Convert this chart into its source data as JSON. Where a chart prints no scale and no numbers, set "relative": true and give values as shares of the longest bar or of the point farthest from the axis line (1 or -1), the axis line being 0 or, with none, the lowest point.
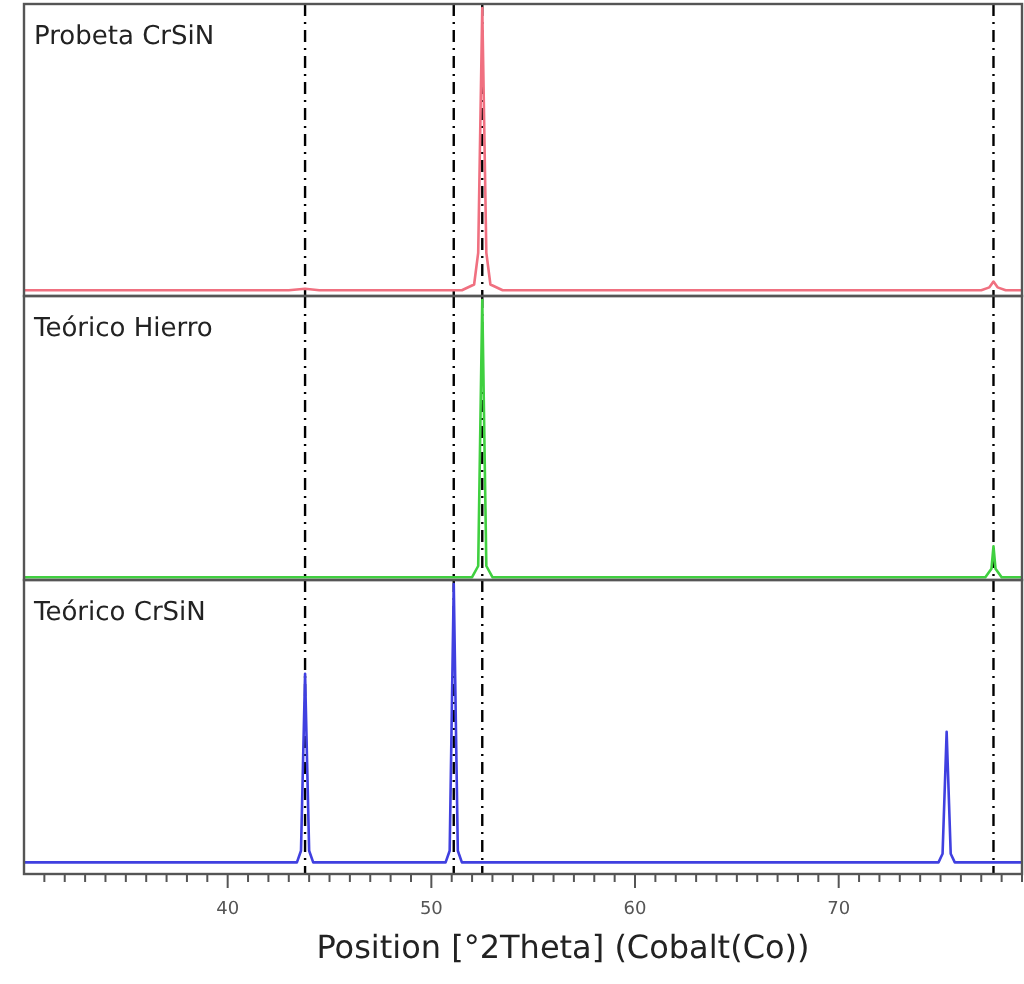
{
  "chart_data": [
    {
      "type": "line",
      "title": "Probeta CrSiN",
      "relative": true,
      "xlim": [
        30,
        79
      ],
      "tick_labels": false,
      "line_style": "solid",
      "marker": "none",
      "series": [
        {
          "color": "#f07080",
          "x": [
            30,
            43,
            43.8,
            44.5,
            51.5,
            52.1,
            52.3,
            52.5,
            52.7,
            52.9,
            53.5,
            77,
            77.4,
            77.6,
            77.8,
            78.2,
            79
          ],
          "values": [
            0.02,
            0.02,
            0.025,
            0.02,
            0.02,
            0.04,
            0.15,
            1,
            0.15,
            0.04,
            0.02,
            0.02,
            0.03,
            0.05,
            0.03,
            0.02,
            0.02
          ]
        }
      ],
      "ref_lines": [
        {
          "axis": "x",
          "value": 43.8,
          "line_style": "dashed",
          "color": "#000000"
        },
        {
          "axis": "x",
          "value": 51.1,
          "line_style": "dashed",
          "color": "#000000"
        },
        {
          "axis": "x",
          "value": 52.5,
          "line_style": "dashed",
          "color": "#000000"
        },
        {
          "axis": "x",
          "value": 77.6,
          "line_style": "dashed",
          "color": "#000000"
        }
      ]
    },
    {
      "type": "line",
      "title": "Teórico Hierro",
      "relative": true,
      "xlim": [
        30,
        79
      ],
      "tick_labels": false,
      "line_style": "solid",
      "marker": "none",
      "series": [
        {
          "color": "#40d040",
          "x": [
            30,
            52,
            52.3,
            52.5,
            52.7,
            53,
            77.2,
            77.5,
            77.6,
            77.7,
            78,
            79
          ],
          "values": [
            0.01,
            0.01,
            0.05,
            1,
            0.05,
            0.01,
            0.01,
            0.04,
            0.12,
            0.04,
            0.01,
            0.01
          ]
        }
      ],
      "ref_lines": [
        {
          "axis": "x",
          "value": 43.8,
          "line_style": "dashed",
          "color": "#000000"
        },
        {
          "axis": "x",
          "value": 51.1,
          "line_style": "dashed",
          "color": "#000000"
        },
        {
          "axis": "x",
          "value": 52.5,
          "line_style": "dashed",
          "color": "#000000"
        },
        {
          "axis": "x",
          "value": 77.6,
          "line_style": "dashed",
          "color": "#000000"
        }
      ]
    },
    {
      "type": "line",
      "title": "Teórico CrSiN",
      "relative": true,
      "xlim": [
        30,
        79
      ],
      "tick_labels": "x",
      "xlabel": "Position [°2Theta] (Cobalt(Co))",
      "line_style": "solid",
      "marker": "none",
      "xticks": [
        {
          "value": 31,
          "label": null
        },
        {
          "value": 32,
          "label": null
        },
        {
          "value": 33,
          "label": null
        },
        {
          "value": 34,
          "label": null
        },
        {
          "value": 35,
          "label": null
        },
        {
          "value": 36,
          "label": null
        },
        {
          "value": 37,
          "label": null
        },
        {
          "value": 38,
          "label": null
        },
        {
          "value": 39,
          "label": null
        },
        40,
        {
          "value": 41,
          "label": null
        },
        {
          "value": 42,
          "label": null
        },
        {
          "value": 43,
          "label": null
        },
        {
          "value": 44,
          "label": null
        },
        {
          "value": 45,
          "label": null
        },
        {
          "value": 46,
          "label": null
        },
        {
          "value": 47,
          "label": null
        },
        {
          "value": 48,
          "label": null
        },
        {
          "value": 49,
          "label": null
        },
        50,
        {
          "value": 51,
          "label": null
        },
        {
          "value": 52,
          "label": null
        },
        {
          "value": 53,
          "label": null
        },
        {
          "value": 54,
          "label": null
        },
        {
          "value": 55,
          "label": null
        },
        {
          "value": 56,
          "label": null
        },
        {
          "value": 57,
          "label": null
        },
        {
          "value": 58,
          "label": null
        },
        {
          "value": 59,
          "label": null
        },
        60,
        {
          "value": 61,
          "label": null
        },
        {
          "value": 62,
          "label": null
        },
        {
          "value": 63,
          "label": null
        },
        {
          "value": 64,
          "label": null
        },
        {
          "value": 65,
          "label": null
        },
        {
          "value": 66,
          "label": null
        },
        {
          "value": 67,
          "label": null
        },
        {
          "value": 68,
          "label": null
        },
        {
          "value": 69,
          "label": null
        },
        70,
        {
          "value": 71,
          "label": null
        },
        {
          "value": 72,
          "label": null
        },
        {
          "value": 73,
          "label": null
        },
        {
          "value": 74,
          "label": null
        },
        {
          "value": 75,
          "label": null
        },
        {
          "value": 76,
          "label": null
        },
        {
          "value": 77,
          "label": null
        },
        {
          "value": 78,
          "label": null
        },
        {
          "value": 79,
          "label": null
        }
      ],
      "series": [
        {
          "color": "#4040e0",
          "x": [
            30,
            43.4,
            43.6,
            43.8,
            44,
            44.2,
            50.7,
            50.9,
            51.1,
            51.3,
            51.5,
            74.9,
            75.1,
            75.3,
            75.5,
            75.7,
            79
          ],
          "values": [
            0.04,
            0.04,
            0.08,
            0.69,
            0.08,
            0.04,
            0.04,
            0.08,
            1,
            0.08,
            0.04,
            0.04,
            0.07,
            0.49,
            0.07,
            0.04,
            0.04
          ]
        }
      ],
      "ref_lines": [
        {
          "axis": "x",
          "value": 43.8,
          "line_style": "dashed",
          "color": "#000000"
        },
        {
          "axis": "x",
          "value": 51.1,
          "line_style": "dashed",
          "color": "#000000"
        },
        {
          "axis": "x",
          "value": 52.5,
          "line_style": "dashed",
          "color": "#000000"
        },
        {
          "axis": "x",
          "value": 77.6,
          "line_style": "dashed",
          "color": "#000000"
        }
      ]
    }
  ]
}
